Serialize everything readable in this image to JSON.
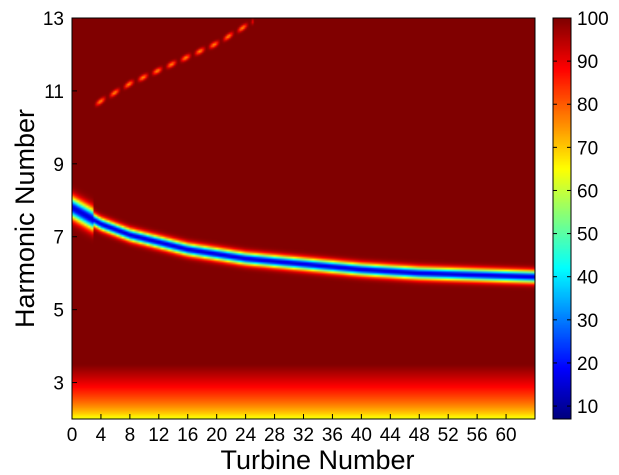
{
  "chart_data": {
    "type": "heatmap",
    "title": "",
    "xlabel": "Turbine Number",
    "ylabel": "Harmonic Number",
    "xlim": [
      0,
      64
    ],
    "ylim": [
      2,
      13
    ],
    "x_ticks": [
      0,
      4,
      8,
      12,
      16,
      20,
      24,
      28,
      32,
      36,
      40,
      44,
      48,
      52,
      56,
      60
    ],
    "y_ticks": [
      3,
      5,
      7,
      9,
      11,
      13
    ],
    "colorbar": {
      "range": [
        7,
        100
      ],
      "ticks": [
        10,
        20,
        30,
        40,
        50,
        60,
        70,
        80,
        90,
        100
      ],
      "colormap": "jet"
    },
    "features": [
      {
        "name": "main-ridge",
        "description_points": [
          {
            "x": 0,
            "y": 7.8
          },
          {
            "x": 4,
            "y": 7.35
          },
          {
            "x": 8,
            "y": 7.05
          },
          {
            "x": 16,
            "y": 6.65
          },
          {
            "x": 24,
            "y": 6.4
          },
          {
            "x": 32,
            "y": 6.25
          },
          {
            "x": 40,
            "y": 6.1
          },
          {
            "x": 48,
            "y": 6.0
          },
          {
            "x": 56,
            "y": 5.95
          },
          {
            "x": 64,
            "y": 5.9
          }
        ],
        "min_value": 15
      },
      {
        "name": "upper-ridge",
        "description_points": [
          {
            "x": 3,
            "y": 10.6
          },
          {
            "x": 8,
            "y": 11.2
          },
          {
            "x": 14,
            "y": 11.75
          },
          {
            "x": 20,
            "y": 12.3
          },
          {
            "x": 25,
            "y": 12.9
          }
        ],
        "min_value": 75
      },
      {
        "name": "low-harmonic-band",
        "y_range": [
          2,
          3.5
        ],
        "value_at_bottom": 62,
        "value_at_top": 100
      }
    ]
  }
}
